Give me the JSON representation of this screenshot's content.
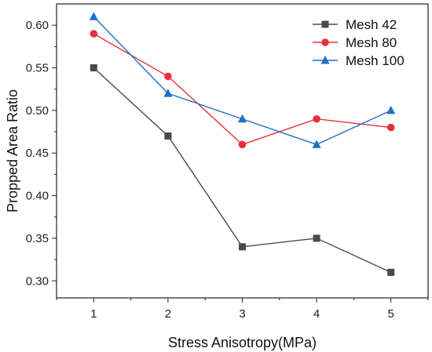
{
  "chart_data": {
    "type": "line",
    "xlabel": "Stress Anisotropy(MPa)",
    "ylabel": "Propped Area Ratio",
    "x": [
      1,
      2,
      3,
      4,
      5
    ],
    "xticks": [
      "1",
      "2",
      "3",
      "4",
      "5"
    ],
    "xlim": [
      0.5,
      5.5
    ],
    "yticks": [
      "0.30",
      "0.35",
      "0.40",
      "0.45",
      "0.50",
      "0.55",
      "0.60"
    ],
    "ylim": [
      0.28,
      0.625
    ],
    "grid": false,
    "legend_position": "top-right",
    "series": [
      {
        "name": "Mesh 42",
        "values": [
          0.55,
          0.47,
          0.34,
          0.35,
          0.31
        ],
        "color": "#4a4a4a",
        "marker": "square"
      },
      {
        "name": "Mesh 80",
        "values": [
          0.59,
          0.54,
          0.46,
          0.49,
          0.48
        ],
        "color": "#e8303a",
        "marker": "circle"
      },
      {
        "name": "Mesh 100",
        "values": [
          0.61,
          0.52,
          0.49,
          0.46,
          0.5
        ],
        "color": "#1f6fc5",
        "marker": "triangle"
      }
    ]
  }
}
